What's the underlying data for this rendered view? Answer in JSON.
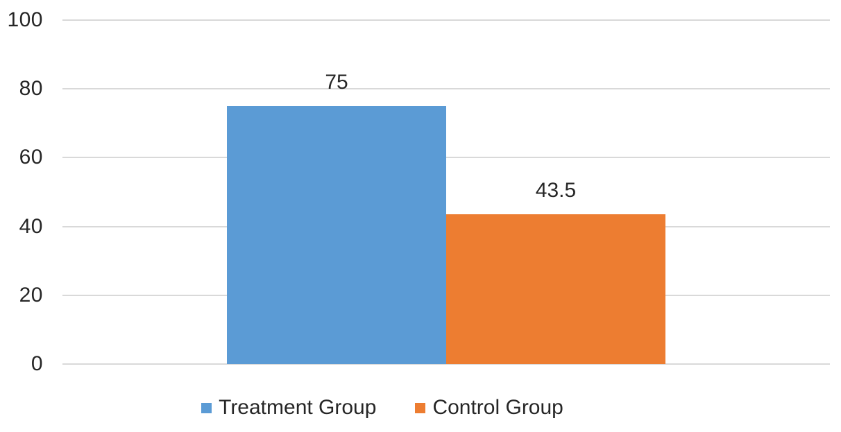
{
  "chart_data": {
    "type": "bar",
    "categories": [
      ""
    ],
    "series": [
      {
        "name": "Treatment Group",
        "values": [
          75
        ],
        "color": "#5B9BD5",
        "data_label": "75"
      },
      {
        "name": "Control Group",
        "values": [
          43.5
        ],
        "color": "#ED7D31",
        "data_label": "43.5"
      }
    ],
    "title": "",
    "xlabel": "",
    "ylabel": "",
    "ylim": [
      0,
      100
    ],
    "yticks": [
      "0",
      "20",
      "40",
      "60",
      "80",
      "100"
    ],
    "grid": true,
    "legend_position": "bottom"
  },
  "legend": {
    "items": [
      {
        "label": "Treatment Group",
        "color": "#5B9BD5"
      },
      {
        "label": "Control Group",
        "color": "#ED7D31"
      }
    ]
  },
  "colors": {
    "gridline": "#D9D9D9",
    "text": "#262626",
    "background": "#FFFFFF"
  }
}
